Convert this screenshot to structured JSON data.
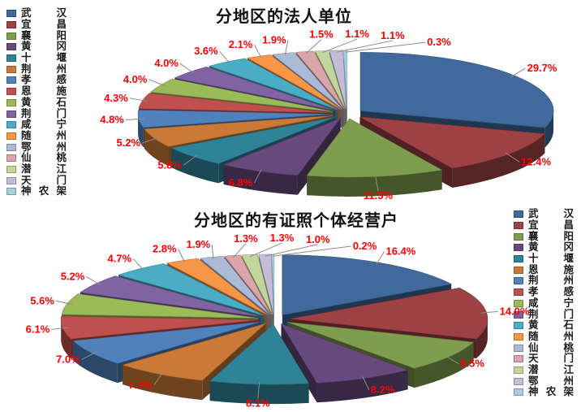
{
  "page": {
    "background": "#FFFFFF"
  },
  "chart_data": [
    {
      "type": "pie",
      "style": "3d-exploded",
      "title": "分地区的法人单位",
      "legend_position": "left",
      "start_angle_deg": -90,
      "direction": "clockwise",
      "percent_label_color": "#FF0000",
      "categories": [
        "武汉",
        "宜昌",
        "襄阳",
        "黄冈",
        "十堰",
        "荆州",
        "孝感",
        "恩施",
        "黄石",
        "荆门",
        "咸宁",
        "随州",
        "鄂州",
        "仙桃",
        "潜江",
        "天门",
        "神农架"
      ],
      "values": [
        29.7,
        12.4,
        11.5,
        6.8,
        5.8,
        5.2,
        4.8,
        4.3,
        4.0,
        4.0,
        3.6,
        2.1,
        1.9,
        1.5,
        1.1,
        1.1,
        0.3
      ],
      "percent_labels": [
        "29.7%",
        "12.4%",
        "11.5%",
        "6.8%",
        "5.8%",
        "5.2%",
        "4.8%",
        "4.3%",
        "4.0%",
        "4.0%",
        "3.6%",
        "2.1%",
        "1.9%",
        "1.5%",
        "1.1%",
        "1.1%",
        "0.3%"
      ],
      "colors": [
        "#40699C",
        "#9E4145",
        "#7F9D4E",
        "#68497E",
        "#2F8399",
        "#CA7A36",
        "#4F81BD",
        "#C0504D",
        "#9BBB59",
        "#8064A2",
        "#4BACC6",
        "#F79646",
        "#AABAD7",
        "#D9A5AA",
        "#C3D69B",
        "#C5BCD8",
        "#A9CFDF"
      ]
    },
    {
      "type": "pie",
      "style": "3d-exploded",
      "title": "分地区的有证照个体经营户",
      "legend_position": "right",
      "start_angle_deg": -90,
      "direction": "clockwise",
      "percent_label_color": "#FF0000",
      "categories": [
        "武汉",
        "宜昌",
        "襄阳",
        "黄冈",
        "十堰",
        "恩施",
        "荆州",
        "孝感",
        "咸宁",
        "荆门",
        "黄石",
        "随州",
        "仙桃",
        "天门",
        "潜江",
        "鄂州",
        "神农架"
      ],
      "values": [
        16.4,
        14.0,
        8.5,
        8.2,
        8.1,
        7.7,
        7.0,
        6.1,
        5.6,
        5.2,
        4.7,
        2.8,
        1.9,
        1.3,
        1.3,
        1.0,
        0.2
      ],
      "percent_labels": [
        "16.4%",
        "14.0%",
        "8.5%",
        "8.2%",
        "8.1%",
        "7.7%",
        "7.0%",
        "6.1%",
        "5.6%",
        "5.2%",
        "4.7%",
        "2.8%",
        "1.9%",
        "1.3%",
        "1.3%",
        "1.0%",
        "0.2%"
      ],
      "colors": [
        "#40699C",
        "#9E4145",
        "#7F9D4E",
        "#68497E",
        "#2F8399",
        "#CA7A36",
        "#4F81BD",
        "#C0504D",
        "#9BBB59",
        "#8064A2",
        "#4BACC6",
        "#F79646",
        "#AABAD7",
        "#D9A5AA",
        "#C3D69B",
        "#C5BCD8",
        "#A9CFDF"
      ]
    }
  ]
}
